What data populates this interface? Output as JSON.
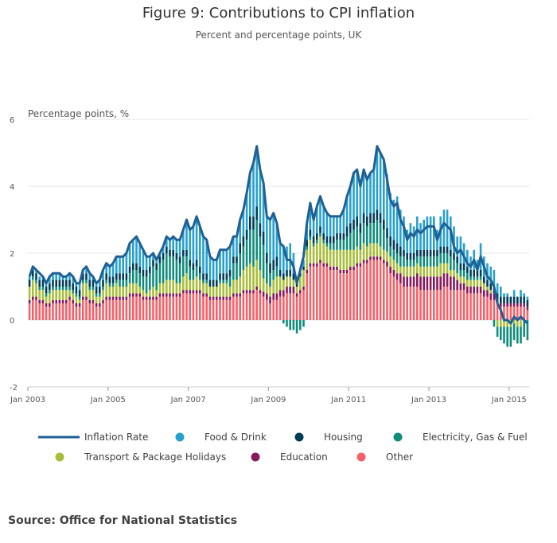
{
  "header": {
    "title": "Figure 9: Contributions to CPI inflation",
    "subtitle": "Percent and percentage points, UK"
  },
  "footer": {
    "source": "Source: Office for National Statistics"
  },
  "colors": {
    "inflation": "#206095",
    "food": "#27a0cc",
    "housing": "#003c57",
    "electricity": "#118c7b",
    "transport": "#a8bd3a",
    "education": "#871a5b",
    "other": "#f66068"
  },
  "chart_data": {
    "type": "bar",
    "stacked": true,
    "title": "Figure 9: Contributions to CPI inflation",
    "subtitle": "Percent and percentage points, UK",
    "ylabel": "Percentage points, %",
    "xlabel": "",
    "ylim": [
      -2,
      6
    ],
    "yticks": [
      "6",
      "4",
      "2",
      "0",
      "-2"
    ],
    "ytick_values": [
      6,
      4,
      2,
      0,
      -2
    ],
    "xticks": [
      "Jan 2003",
      "Jan 2005",
      "Jan 2007",
      "Jan 2009",
      "Jan 2011",
      "Jan 2013",
      "Jan 2015"
    ],
    "xtick_index": [
      0,
      24,
      48,
      72,
      96,
      120,
      144
    ],
    "period": "monthly, Jan 2003 - Aug 2015",
    "legend": [
      {
        "key": "inflation",
        "label": "Inflation Rate",
        "kind": "line"
      },
      {
        "key": "food",
        "label": "Food & Drink",
        "kind": "dot"
      },
      {
        "key": "housing",
        "label": "Housing",
        "kind": "dot"
      },
      {
        "key": "electricity",
        "label": "Electricity, Gas & Fuel",
        "kind": "dot"
      },
      {
        "key": "transport",
        "label": "Transport & Package Holidays",
        "kind": "dot"
      },
      {
        "key": "education",
        "label": "Education",
        "kind": "dot"
      },
      {
        "key": "other",
        "label": "Other",
        "kind": "dot"
      }
    ],
    "inflation_rate": [
      1.3,
      1.6,
      1.5,
      1.4,
      1.3,
      1.1,
      1.3,
      1.4,
      1.4,
      1.4,
      1.3,
      1.3,
      1.4,
      1.3,
      1.1,
      1.1,
      1.5,
      1.6,
      1.4,
      1.3,
      1.1,
      1.2,
      1.5,
      1.7,
      1.6,
      1.7,
      1.9,
      1.9,
      1.9,
      2.0,
      2.3,
      2.4,
      2.5,
      2.3,
      2.1,
      1.9,
      1.9,
      2.0,
      1.8,
      2.0,
      2.2,
      2.5,
      2.4,
      2.5,
      2.4,
      2.4,
      2.7,
      3.0,
      2.7,
      2.8,
      3.1,
      2.8,
      2.5,
      2.4,
      1.9,
      1.8,
      1.8,
      2.1,
      2.1,
      2.1,
      2.2,
      2.5,
      2.5,
      3.0,
      3.3,
      3.8,
      4.4,
      4.7,
      5.2,
      4.5,
      4.1,
      3.1,
      3.0,
      3.2,
      2.9,
      2.3,
      2.2,
      1.8,
      1.8,
      1.6,
      1.1,
      1.5,
      1.9,
      2.9,
      3.5,
      3.0,
      3.4,
      3.7,
      3.4,
      3.2,
      3.1,
      3.1,
      3.1,
      3.1,
      3.3,
      3.7,
      4.0,
      4.4,
      4.5,
      4.0,
      4.5,
      4.2,
      4.4,
      4.5,
      5.2,
      5.0,
      4.8,
      4.2,
      3.6,
      3.4,
      3.5,
      3.0,
      2.8,
      2.4,
      2.6,
      2.5,
      2.7,
      2.6,
      2.7,
      2.8,
      2.8,
      2.8,
      2.4,
      2.7,
      2.9,
      2.8,
      2.7,
      2.2,
      2.0,
      2.1,
      1.9,
      1.7,
      1.6,
      1.8,
      1.5,
      1.9,
      1.6,
      1.3,
      1.2,
      1.0,
      0.5,
      0.3,
      0.0,
      0.0,
      -0.1,
      0.1,
      0.0,
      0.1,
      0.0,
      -0.1
    ],
    "series": [
      {
        "key": "other",
        "name": "Other",
        "values": [
          0.5,
          0.6,
          0.6,
          0.5,
          0.5,
          0.4,
          0.4,
          0.5,
          0.5,
          0.5,
          0.5,
          0.5,
          0.6,
          0.5,
          0.4,
          0.4,
          0.6,
          0.6,
          0.5,
          0.5,
          0.4,
          0.4,
          0.5,
          0.6,
          0.6,
          0.6,
          0.6,
          0.6,
          0.6,
          0.6,
          0.7,
          0.7,
          0.7,
          0.7,
          0.6,
          0.6,
          0.6,
          0.6,
          0.6,
          0.7,
          0.7,
          0.7,
          0.7,
          0.7,
          0.7,
          0.7,
          0.8,
          0.8,
          0.8,
          0.8,
          0.8,
          0.8,
          0.7,
          0.7,
          0.6,
          0.6,
          0.6,
          0.6,
          0.6,
          0.6,
          0.6,
          0.7,
          0.7,
          0.7,
          0.8,
          0.8,
          0.8,
          0.8,
          0.9,
          0.8,
          0.7,
          0.6,
          0.5,
          0.6,
          0.6,
          0.7,
          0.7,
          0.8,
          0.8,
          0.8,
          0.7,
          0.8,
          0.9,
          1.4,
          1.6,
          1.6,
          1.6,
          1.7,
          1.6,
          1.6,
          1.5,
          1.5,
          1.5,
          1.4,
          1.4,
          1.4,
          1.5,
          1.5,
          1.6,
          1.6,
          1.7,
          1.7,
          1.8,
          1.8,
          1.8,
          1.8,
          1.7,
          1.6,
          1.4,
          1.3,
          1.2,
          1.1,
          1.0,
          1.0,
          1.0,
          1.0,
          1.0,
          0.9,
          0.9,
          0.9,
          0.9,
          0.9,
          0.9,
          0.9,
          1.0,
          1.0,
          0.9,
          0.9,
          0.9,
          0.9,
          0.9,
          0.8,
          0.8,
          0.8,
          0.8,
          0.8,
          0.7,
          0.7,
          0.6,
          0.6,
          0.5,
          0.4,
          0.4,
          0.4,
          0.4,
          0.4,
          0.4,
          0.4,
          0.4,
          0.3
        ]
      },
      {
        "key": "education",
        "name": "Education",
        "values": [
          0.1,
          0.1,
          0.1,
          0.1,
          0.1,
          0.1,
          0.1,
          0.1,
          0.1,
          0.1,
          0.1,
          0.1,
          0.1,
          0.1,
          0.1,
          0.1,
          0.1,
          0.1,
          0.1,
          0.1,
          0.1,
          0.1,
          0.1,
          0.1,
          0.1,
          0.1,
          0.1,
          0.1,
          0.1,
          0.1,
          0.1,
          0.1,
          0.1,
          0.1,
          0.1,
          0.1,
          0.1,
          0.1,
          0.1,
          0.1,
          0.1,
          0.1,
          0.1,
          0.1,
          0.1,
          0.1,
          0.1,
          0.1,
          0.1,
          0.1,
          0.1,
          0.1,
          0.1,
          0.1,
          0.1,
          0.1,
          0.1,
          0.1,
          0.1,
          0.1,
          0.1,
          0.1,
          0.1,
          0.1,
          0.1,
          0.1,
          0.1,
          0.1,
          0.1,
          0.1,
          0.15,
          0.2,
          0.2,
          0.2,
          0.2,
          0.2,
          0.2,
          0.2,
          0.2,
          0.2,
          0.1,
          0.1,
          0.1,
          0.1,
          0.1,
          0.1,
          0.1,
          0.1,
          0.1,
          0.1,
          0.1,
          0.1,
          0.1,
          0.1,
          0.1,
          0.1,
          0.1,
          0.1,
          0.1,
          0.1,
          0.1,
          0.1,
          0.1,
          0.1,
          0.1,
          0.1,
          0.1,
          0.15,
          0.2,
          0.2,
          0.2,
          0.3,
          0.3,
          0.3,
          0.3,
          0.3,
          0.4,
          0.4,
          0.4,
          0.4,
          0.4,
          0.4,
          0.4,
          0.4,
          0.4,
          0.4,
          0.4,
          0.4,
          0.3,
          0.2,
          0.2,
          0.2,
          0.2,
          0.2,
          0.2,
          0.2,
          0.2,
          0.2,
          0.2,
          0.2,
          0.1,
          0.1,
          0.1,
          0.1,
          0.1,
          0.1,
          0.1,
          0.1,
          0.1,
          0.1
        ]
      },
      {
        "key": "transport",
        "name": "Transport & Package Holidays",
        "values": [
          0.4,
          0.5,
          0.4,
          0.3,
          0.3,
          0.2,
          0.3,
          0.3,
          0.3,
          0.3,
          0.3,
          0.3,
          0.2,
          0.2,
          0.2,
          0.1,
          0.4,
          0.4,
          0.3,
          0.3,
          0.2,
          0.2,
          0.3,
          0.4,
          0.3,
          0.3,
          0.4,
          0.3,
          0.3,
          0.3,
          0.3,
          0.3,
          0.3,
          0.2,
          0.2,
          0.1,
          0.2,
          0.3,
          0.2,
          0.3,
          0.3,
          0.4,
          0.4,
          0.4,
          0.3,
          0.3,
          0.4,
          0.5,
          0.3,
          0.3,
          0.4,
          0.3,
          0.3,
          0.3,
          0.3,
          0.3,
          0.3,
          0.4,
          0.4,
          0.4,
          0.3,
          0.4,
          0.4,
          0.5,
          0.6,
          0.7,
          0.8,
          0.7,
          0.8,
          0.6,
          0.4,
          0.3,
          0.3,
          0.4,
          0.5,
          0.4,
          0.3,
          0.3,
          0.3,
          0.2,
          0.2,
          0.4,
          0.5,
          0.6,
          0.7,
          0.5,
          0.6,
          0.7,
          0.6,
          0.5,
          0.5,
          0.5,
          0.5,
          0.6,
          0.6,
          0.6,
          0.5,
          0.5,
          0.5,
          0.4,
          0.5,
          0.4,
          0.4,
          0.4,
          0.4,
          0.3,
          0.3,
          0.3,
          0.3,
          0.3,
          0.3,
          0.2,
          0.3,
          0.3,
          0.3,
          0.3,
          0.3,
          0.3,
          0.3,
          0.3,
          0.3,
          0.3,
          0.3,
          0.4,
          0.3,
          0.3,
          0.2,
          0.2,
          0.2,
          0.2,
          0.2,
          0.2,
          0.2,
          0.2,
          0.2,
          0.2,
          0.2,
          0.1,
          0.1,
          0.0,
          -0.2,
          -0.2,
          -0.2,
          -0.2,
          -0.2,
          -0.1,
          -0.2,
          -0.2
        ]
      },
      {
        "key": "electricity",
        "name": "Electricity, Gas & Fuel",
        "values": [
          0.0,
          0.1,
          0.1,
          0.1,
          0.1,
          0.1,
          0.1,
          0.1,
          0.1,
          0.1,
          0.1,
          0.1,
          0.1,
          0.1,
          0.1,
          0.1,
          0.1,
          0.1,
          0.1,
          0.1,
          0.1,
          0.1,
          0.1,
          0.1,
          0.1,
          0.1,
          0.1,
          0.2,
          0.2,
          0.2,
          0.3,
          0.4,
          0.4,
          0.4,
          0.4,
          0.5,
          0.5,
          0.6,
          0.6,
          0.6,
          0.7,
          0.8,
          0.7,
          0.7,
          0.7,
          0.6,
          0.6,
          0.5,
          0.4,
          0.3,
          0.3,
          0.2,
          0.1,
          0.1,
          0.0,
          0.0,
          0.0,
          0.1,
          0.1,
          0.1,
          0.3,
          0.5,
          0.5,
          0.7,
          0.7,
          0.8,
          1.0,
          1.1,
          1.2,
          1.0,
          1.0,
          0.6,
          0.4,
          0.3,
          0.3,
          0.0,
          -0.1,
          -0.2,
          -0.3,
          -0.3,
          -0.4,
          -0.3,
          -0.2,
          0.1,
          0.1,
          0.1,
          0.1,
          0.1,
          0.1,
          0.1,
          0.2,
          0.2,
          0.3,
          0.3,
          0.3,
          0.4,
          0.5,
          0.6,
          0.6,
          0.5,
          0.6,
          0.6,
          0.6,
          0.6,
          0.7,
          0.7,
          0.6,
          0.4,
          0.3,
          0.3,
          0.3,
          0.3,
          0.3,
          0.2,
          0.2,
          0.2,
          0.2,
          0.3,
          0.3,
          0.3,
          0.3,
          0.3,
          0.3,
          0.3,
          0.3,
          0.3,
          0.4,
          0.3,
          0.3,
          0.2,
          0.2,
          0.2,
          0.1,
          0.1,
          0.1,
          0.1,
          0.0,
          0.0,
          0.0,
          -0.2,
          -0.3,
          -0.4,
          -0.5,
          -0.6,
          -0.6,
          -0.5,
          -0.5,
          -0.5,
          -0.5,
          -0.6
        ]
      },
      {
        "key": "housing",
        "name": "Housing",
        "values": [
          0.2,
          0.2,
          0.2,
          0.2,
          0.2,
          0.2,
          0.2,
          0.2,
          0.2,
          0.2,
          0.2,
          0.2,
          0.2,
          0.2,
          0.2,
          0.2,
          0.2,
          0.2,
          0.2,
          0.2,
          0.2,
          0.2,
          0.2,
          0.2,
          0.2,
          0.2,
          0.2,
          0.2,
          0.2,
          0.2,
          0.2,
          0.2,
          0.2,
          0.2,
          0.2,
          0.2,
          0.2,
          0.2,
          0.2,
          0.2,
          0.2,
          0.2,
          0.2,
          0.2,
          0.2,
          0.2,
          0.2,
          0.2,
          0.2,
          0.2,
          0.2,
          0.2,
          0.2,
          0.2,
          0.2,
          0.2,
          0.2,
          0.2,
          0.2,
          0.2,
          0.2,
          0.2,
          0.2,
          0.3,
          0.3,
          0.3,
          0.4,
          0.4,
          0.4,
          0.4,
          0.4,
          0.3,
          0.3,
          0.3,
          0.3,
          0.2,
          0.2,
          0.2,
          0.2,
          0.2,
          0.1,
          0.1,
          0.1,
          0.2,
          0.2,
          0.2,
          0.2,
          0.2,
          0.2,
          0.2,
          0.2,
          0.2,
          0.2,
          0.2,
          0.2,
          0.3,
          0.3,
          0.3,
          0.3,
          0.3,
          0.3,
          0.3,
          0.3,
          0.3,
          0.3,
          0.3,
          0.3,
          0.3,
          0.3,
          0.3,
          0.3,
          0.3,
          0.2,
          0.2,
          0.2,
          0.2,
          0.2,
          0.2,
          0.2,
          0.2,
          0.2,
          0.2,
          0.2,
          0.2,
          0.2,
          0.2,
          0.2,
          0.2,
          0.2,
          0.2,
          0.2,
          0.2,
          0.2,
          0.2,
          0.2,
          0.2,
          0.2,
          0.2,
          0.2,
          0.2,
          0.2,
          0.2,
          0.2,
          0.2,
          0.2,
          0.2,
          0.2,
          0.2,
          0.2,
          0.2
        ]
      },
      {
        "key": "food",
        "name": "Food & Drink",
        "values": [
          0.1,
          0.1,
          0.1,
          0.1,
          0.1,
          0.1,
          0.2,
          0.2,
          0.2,
          0.2,
          0.1,
          0.1,
          0.2,
          0.2,
          0.1,
          0.2,
          0.1,
          0.2,
          0.2,
          0.1,
          0.1,
          0.2,
          0.3,
          0.3,
          0.3,
          0.4,
          0.5,
          0.5,
          0.5,
          0.6,
          0.7,
          0.7,
          0.8,
          0.7,
          0.6,
          0.4,
          0.3,
          0.2,
          0.1,
          0.1,
          0.2,
          0.3,
          0.3,
          0.4,
          0.4,
          0.5,
          0.6,
          0.9,
          0.9,
          1.1,
          1.3,
          1.2,
          1.1,
          1.0,
          0.7,
          0.6,
          0.6,
          0.7,
          0.7,
          0.7,
          0.7,
          0.6,
          0.6,
          0.7,
          0.8,
          1.1,
          1.3,
          1.6,
          1.8,
          1.6,
          1.4,
          1.1,
          1.3,
          1.4,
          1.0,
          0.8,
          0.8,
          0.7,
          0.8,
          0.6,
          0.2,
          0.1,
          0.2,
          0.5,
          0.8,
          0.5,
          0.8,
          0.9,
          0.8,
          0.7,
          0.6,
          0.6,
          0.5,
          0.5,
          0.7,
          0.9,
          1.1,
          1.4,
          1.4,
          1.1,
          1.3,
          1.1,
          1.2,
          1.3,
          1.9,
          1.8,
          1.8,
          1.6,
          1.3,
          1.2,
          1.4,
          1.1,
          1.0,
          0.7,
          0.9,
          0.8,
          1.0,
          0.8,
          0.9,
          1.0,
          1.0,
          1.0,
          0.6,
          0.9,
          1.1,
          1.1,
          1.0,
          0.8,
          0.6,
          0.8,
          0.6,
          0.5,
          0.4,
          0.6,
          0.3,
          0.8,
          0.6,
          0.5,
          0.5,
          0.5,
          0.3,
          0.3,
          0.1,
          0.1,
          0.0,
          0.2,
          0.0,
          0.2,
          0.1,
          0.1
        ]
      }
    ]
  }
}
